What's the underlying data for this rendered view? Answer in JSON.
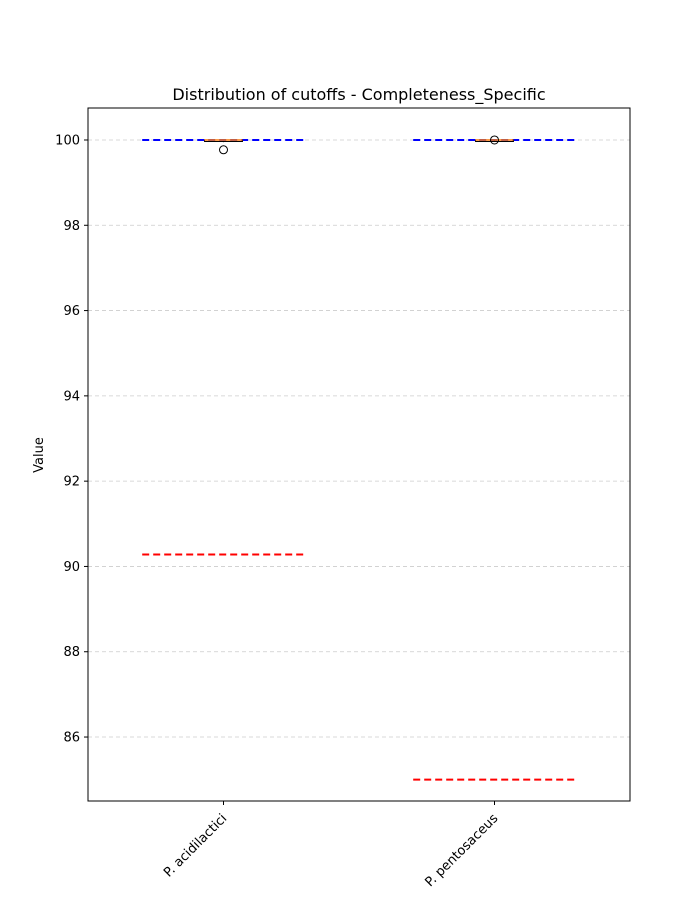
{
  "chart_data": {
    "type": "box",
    "title": "Distribution of cutoffs - Completeness_Specific",
    "xlabel": "",
    "ylabel": "Value",
    "categories": [
      "P. acidilactici",
      "P. pentosaceus"
    ],
    "ylim": [
      84.5,
      100.75
    ],
    "yticks": [
      86,
      88,
      90,
      92,
      94,
      96,
      98,
      100
    ],
    "grid": "y-dashed",
    "boxes": [
      {
        "category": "P. acidilactici",
        "q1": 99.97,
        "median": 100.0,
        "q3": 100.0,
        "whisker_low": 99.95,
        "whisker_high": 100.0,
        "outliers": [
          99.77
        ]
      },
      {
        "category": "P. pentosaceus",
        "q1": 99.99,
        "median": 100.0,
        "q3": 100.0,
        "whisker_low": 99.98,
        "whisker_high": 100.0,
        "outliers": [
          100.0
        ]
      }
    ],
    "reference_lines": [
      {
        "category": "P. acidilactici",
        "color": "#0000ff",
        "style": "dashed",
        "value": 100.0
      },
      {
        "category": "P. acidilactici",
        "color": "#ff0000",
        "style": "dashed",
        "value": 90.28
      },
      {
        "category": "P. pentosaceus",
        "color": "#0000ff",
        "style": "dashed",
        "value": 100.0
      },
      {
        "category": "P. pentosaceus",
        "color": "#ff0000",
        "style": "dashed",
        "value": 85.0
      }
    ],
    "colors": {
      "median": "#ff7f0e",
      "box": "#000000",
      "grid": "#cccccc"
    }
  }
}
